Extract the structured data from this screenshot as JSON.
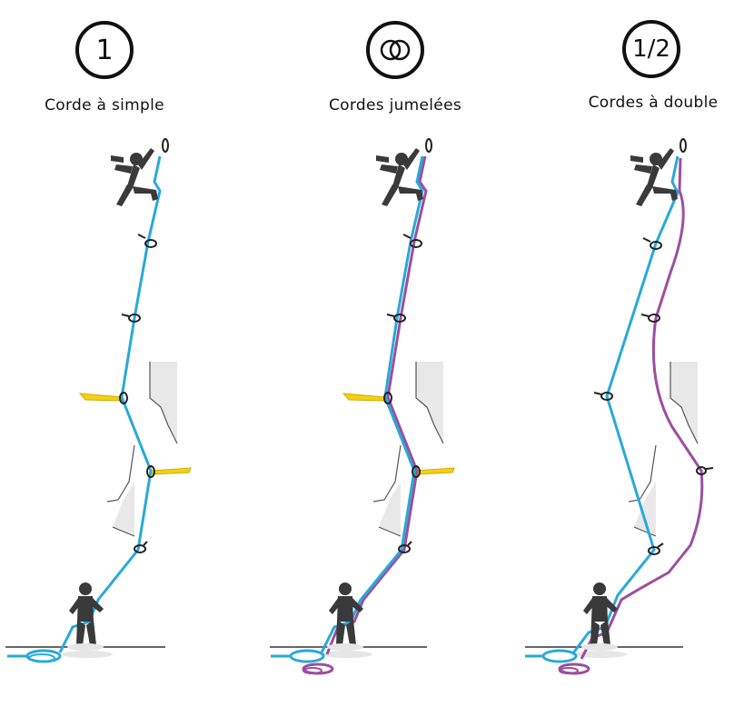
{
  "panels": [
    {
      "id": "single",
      "badge_text": "1",
      "badge_icon": null,
      "caption": "Corde à simple"
    },
    {
      "id": "twin",
      "badge_text": "",
      "badge_icon": "twin-rings-icon",
      "caption": "Cordes jumelées"
    },
    {
      "id": "half",
      "badge_text": "1/2",
      "badge_icon": null,
      "caption": "Cordes à double"
    }
  ],
  "colors": {
    "rope_blue": "#29a9d8",
    "rope_purple": "#9b4fa0",
    "sling_yellow": "#f2d20f",
    "climber": "#3a3a3a",
    "rock": "#e3e3e3",
    "ink": "#111111"
  }
}
